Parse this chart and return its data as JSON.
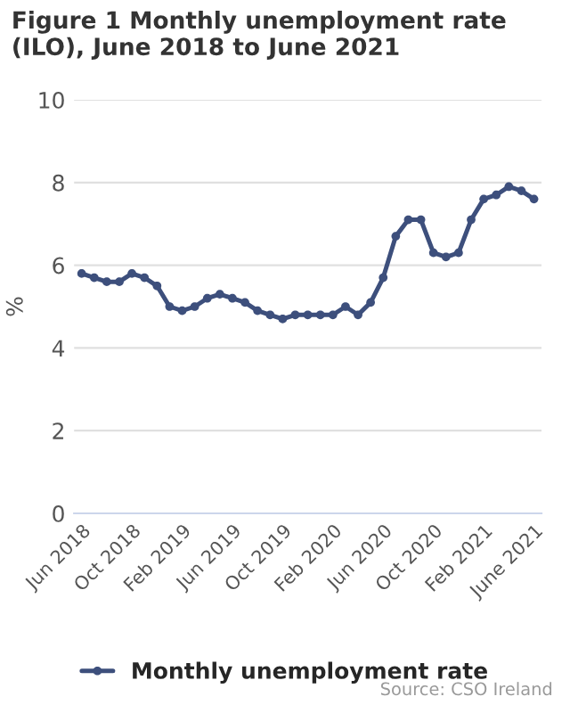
{
  "chart_data": {
    "type": "line",
    "title": "Figure 1 Monthly unemployment rate (ILO), June 2018 to June 2021",
    "ylabel": "%",
    "categories": [
      "Jun 2018",
      null,
      null,
      null,
      "Oct 2018",
      null,
      null,
      null,
      "Feb 2019",
      null,
      null,
      null,
      "Jun 2019",
      null,
      null,
      null,
      "Oct 2019",
      null,
      null,
      null,
      "Feb 2020",
      null,
      null,
      null,
      "Jun 2020",
      null,
      null,
      null,
      "Oct 2020",
      null,
      null,
      null,
      "Feb 2021",
      null,
      null,
      null,
      "June 2021"
    ],
    "series": [
      {
        "name": "Monthly unemployment rate",
        "color": "#3d4f7c",
        "values": [
          5.8,
          5.7,
          5.6,
          5.6,
          5.8,
          5.7,
          5.5,
          5.0,
          4.9,
          5.0,
          5.2,
          5.3,
          5.2,
          5.1,
          4.9,
          4.8,
          4.7,
          4.8,
          4.8,
          4.8,
          4.8,
          5.0,
          4.8,
          5.1,
          5.7,
          6.7,
          7.1,
          7.1,
          6.3,
          6.2,
          6.3,
          7.1,
          7.6,
          7.7,
          7.9,
          7.8,
          7.6
        ]
      }
    ],
    "ylim": [
      0,
      10
    ],
    "yticks": [
      0,
      2,
      4,
      6,
      8,
      10
    ],
    "grid": "y",
    "legend": "bottom",
    "marker": "circle",
    "line_style": "solid",
    "annotations": [
      "Source: CSO Ireland"
    ]
  }
}
